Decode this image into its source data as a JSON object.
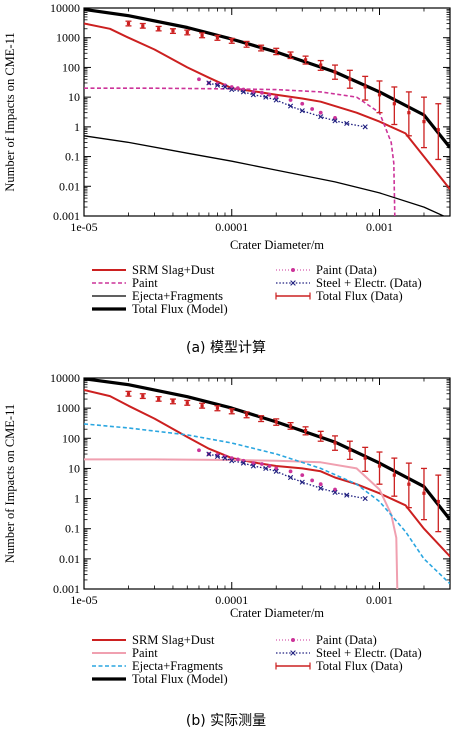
{
  "figure": {
    "caption_a": "(a)  模型计算",
    "caption_b": "(b)  实际测量"
  },
  "colors": {
    "srm": "#cc2020",
    "paint_a": "#cc3399",
    "paint_b": "#f0a0b0",
    "paint_data": "#cc3399",
    "steel": "#202080",
    "ejecta_a": "#000000",
    "ejecta_b": "#2aa6e0",
    "total_model": "#000000",
    "total_data": "#cc2020"
  },
  "chart_data": [
    {
      "type": "line",
      "panel": "a",
      "xlabel": "Crater Diameter/m",
      "ylabel": "Number of Impacts on CME-11",
      "xscale": "log",
      "yscale": "log",
      "xlim": [
        1e-05,
        0.003
      ],
      "ylim": [
        0.001,
        10000
      ],
      "xticks": [
        "1e-05",
        "0.0001",
        "0.001"
      ],
      "xtick_values": [
        1e-05,
        0.0001,
        0.001
      ],
      "yticks": [
        "10000",
        "1000",
        "100",
        "10",
        "1",
        "0.1",
        "0.01",
        "0.001"
      ],
      "ytick_values": [
        10000,
        1000,
        100,
        10,
        1,
        0.1,
        0.01,
        0.001
      ],
      "grid": false,
      "legend_position": "below",
      "series": [
        {
          "name": "SRM Slag+Dust",
          "style": "solid",
          "color": "srm",
          "x": [
            1e-05,
            1.5e-05,
            2e-05,
            3e-05,
            5e-05,
            7e-05,
            0.0001,
            0.00015,
            0.0002,
            0.0003,
            0.0004,
            0.0005,
            0.0007,
            0.001,
            0.0015,
            0.002,
            0.003
          ],
          "y": [
            3000,
            2000,
            1000,
            400,
            100,
            45,
            20,
            15,
            12,
            9,
            7,
            5,
            3,
            1.5,
            0.6,
            0.1,
            0.008
          ]
        },
        {
          "name": "Paint",
          "style": "dashed",
          "color": "paint_a",
          "x": [
            1e-05,
            3e-05,
            0.0001,
            0.0002,
            0.0004,
            0.0007,
            0.001,
            0.0012,
            0.00125,
            0.00127
          ],
          "y": [
            20,
            20,
            19,
            18,
            15,
            10,
            3,
            0.3,
            0.06,
            0.001
          ]
        },
        {
          "name": "Ejecta+Fragments",
          "style": "solid",
          "color": "ejecta_a",
          "x": [
            1e-05,
            2e-05,
            5e-05,
            0.0001,
            0.0002,
            0.0005,
            0.001,
            0.002,
            0.003
          ],
          "y": [
            0.5,
            0.3,
            0.13,
            0.07,
            0.035,
            0.014,
            0.006,
            0.002,
            0.0008
          ]
        },
        {
          "name": "Total Flux (Model)",
          "style": "solid-thick",
          "color": "total_model",
          "x": [
            1e-05,
            2e-05,
            5e-05,
            0.0001,
            0.0002,
            0.0005,
            0.001,
            0.002,
            0.003
          ],
          "y": [
            9000,
            5500,
            2200,
            900,
            330,
            70,
            15,
            2.5,
            0.2
          ]
        },
        {
          "name": "Paint (Data)",
          "style": "points",
          "color": "paint_data",
          "x": [
            6e-05,
            7e-05,
            8e-05,
            9e-05,
            0.0001,
            0.00011,
            0.00012,
            0.00014,
            0.00016,
            0.00018,
            0.0002,
            0.00025,
            0.0003,
            0.00035,
            0.0004,
            0.0005
          ],
          "y": [
            40,
            30,
            28,
            25,
            22,
            20,
            18,
            15,
            14,
            12,
            10,
            8,
            6,
            4,
            3,
            2
          ]
        },
        {
          "name": "Steel + Electr. (Data)",
          "style": "dotted-points",
          "color": "steel",
          "x": [
            7e-05,
            8e-05,
            9e-05,
            0.0001,
            0.00012,
            0.00014,
            0.00017,
            0.0002,
            0.00025,
            0.0003,
            0.0004,
            0.0005,
            0.0006,
            0.0008
          ],
          "y": [
            30,
            25,
            22,
            18,
            15,
            12,
            10,
            8,
            5,
            3.5,
            2.2,
            1.6,
            1.3,
            1
          ]
        },
        {
          "name": "Total Flux (Data)",
          "style": "errorbars",
          "color": "total_data",
          "x": [
            2e-05,
            2.5e-05,
            3.2e-05,
            4e-05,
            5e-05,
            6.3e-05,
            8e-05,
            0.0001,
            0.000126,
            0.000158,
            0.0002,
            0.00025,
            0.000316,
            0.0004,
            0.0005,
            0.00063,
            0.0008,
            0.001,
            0.00126,
            0.00158,
            0.002,
            0.0025
          ],
          "y": [
            3000,
            2500,
            2000,
            1700,
            1500,
            1200,
            1000,
            800,
            600,
            450,
            350,
            260,
            180,
            120,
            70,
            40,
            22,
            12,
            6,
            3,
            1.5,
            0.8
          ],
          "y_low": [
            2500,
            2100,
            1700,
            1400,
            1250,
            1000,
            820,
            650,
            480,
            360,
            270,
            200,
            130,
            80,
            40,
            20,
            8,
            3,
            1.2,
            0.5,
            0.2,
            0.08
          ],
          "y_high": [
            3600,
            3000,
            2400,
            2000,
            1800,
            1450,
            1200,
            950,
            750,
            560,
            440,
            330,
            240,
            170,
            120,
            80,
            50,
            35,
            22,
            15,
            10,
            6
          ]
        }
      ]
    },
    {
      "type": "line",
      "panel": "b",
      "xlabel": "Crater Diameter/m",
      "ylabel": "Number of Impacts on CME-11",
      "xscale": "log",
      "yscale": "log",
      "xlim": [
        1e-05,
        0.003
      ],
      "ylim": [
        0.001,
        10000
      ],
      "xticks": [
        "1e-05",
        "0.0001",
        "0.001"
      ],
      "xtick_values": [
        1e-05,
        0.0001,
        0.001
      ],
      "yticks": [
        "10000",
        "1000",
        "100",
        "10",
        "1",
        "0.1",
        "0.01",
        "0.001"
      ],
      "ytick_values": [
        10000,
        1000,
        100,
        10,
        1,
        0.1,
        0.01,
        0.001
      ],
      "grid": false,
      "legend_position": "below",
      "series": [
        {
          "name": "SRM Slag+Dust",
          "style": "solid",
          "color": "srm",
          "x": [
            1e-05,
            1.5e-05,
            2e-05,
            3e-05,
            5e-05,
            7e-05,
            0.0001,
            0.00015,
            0.0002,
            0.0003,
            0.0004,
            0.0005,
            0.0007,
            0.001,
            0.0015,
            0.002,
            0.003
          ],
          "y": [
            4000,
            2500,
            1200,
            450,
            110,
            45,
            22,
            15,
            12,
            10,
            8,
            5,
            3,
            1.5,
            0.6,
            0.1,
            0.012
          ]
        },
        {
          "name": "Paint",
          "style": "solid",
          "color": "paint_b",
          "x": [
            1e-05,
            3e-05,
            0.0001,
            0.0002,
            0.0004,
            0.0007,
            0.001,
            0.0012,
            0.0013,
            0.00132
          ],
          "y": [
            20,
            20,
            19,
            18,
            16,
            10,
            2,
            0.3,
            0.05,
            0.001
          ]
        },
        {
          "name": "Ejecta+Fragments",
          "style": "dashed",
          "color": "ejecta_b",
          "x": [
            1e-05,
            2e-05,
            5e-05,
            0.0001,
            0.0002,
            0.0004,
            0.0007,
            0.001,
            0.0015,
            0.002,
            0.003
          ],
          "y": [
            300,
            220,
            130,
            70,
            30,
            10,
            3,
            0.8,
            0.08,
            0.01,
            0.0015
          ]
        },
        {
          "name": "Total Flux (Model)",
          "style": "solid-thick",
          "color": "total_model",
          "x": [
            1e-05,
            2e-05,
            5e-05,
            0.0001,
            0.0002,
            0.0005,
            0.001,
            0.002,
            0.003
          ],
          "y": [
            9500,
            6000,
            2400,
            1000,
            350,
            75,
            15,
            2.5,
            0.2
          ]
        },
        {
          "name": "Paint (Data)",
          "style": "points",
          "color": "paint_data",
          "x": [
            6e-05,
            7e-05,
            8e-05,
            9e-05,
            0.0001,
            0.00011,
            0.00012,
            0.00014,
            0.00016,
            0.00018,
            0.0002,
            0.00025,
            0.0003,
            0.00035,
            0.0004,
            0.0005
          ],
          "y": [
            40,
            30,
            28,
            25,
            22,
            20,
            18,
            15,
            14,
            12,
            10,
            8,
            6,
            4,
            3,
            2
          ]
        },
        {
          "name": "Steel + Electr. (Data)",
          "style": "dotted-points",
          "color": "steel",
          "x": [
            7e-05,
            8e-05,
            9e-05,
            0.0001,
            0.00012,
            0.00014,
            0.00017,
            0.0002,
            0.00025,
            0.0003,
            0.0004,
            0.0005,
            0.0006,
            0.0008
          ],
          "y": [
            30,
            25,
            22,
            18,
            15,
            12,
            10,
            8,
            5,
            3.5,
            2.2,
            1.6,
            1.3,
            1
          ]
        },
        {
          "name": "Total Flux (Data)",
          "style": "errorbars",
          "color": "total_data",
          "x": [
            2e-05,
            2.5e-05,
            3.2e-05,
            4e-05,
            5e-05,
            6.3e-05,
            8e-05,
            0.0001,
            0.000126,
            0.000158,
            0.0002,
            0.00025,
            0.000316,
            0.0004,
            0.0005,
            0.00063,
            0.0008,
            0.001,
            0.00126,
            0.00158,
            0.002,
            0.0025
          ],
          "y": [
            3000,
            2500,
            2000,
            1700,
            1500,
            1200,
            1000,
            800,
            600,
            450,
            350,
            260,
            180,
            120,
            70,
            40,
            22,
            12,
            6,
            3,
            1.5,
            0.8
          ],
          "y_low": [
            2500,
            2100,
            1700,
            1400,
            1250,
            1000,
            820,
            650,
            480,
            360,
            270,
            200,
            130,
            80,
            40,
            20,
            8,
            3,
            1.2,
            0.5,
            0.2,
            0.08
          ],
          "y_high": [
            3600,
            3000,
            2400,
            2000,
            1800,
            1450,
            1200,
            950,
            750,
            560,
            440,
            330,
            240,
            170,
            120,
            80,
            50,
            35,
            22,
            15,
            10,
            6
          ]
        }
      ]
    }
  ]
}
